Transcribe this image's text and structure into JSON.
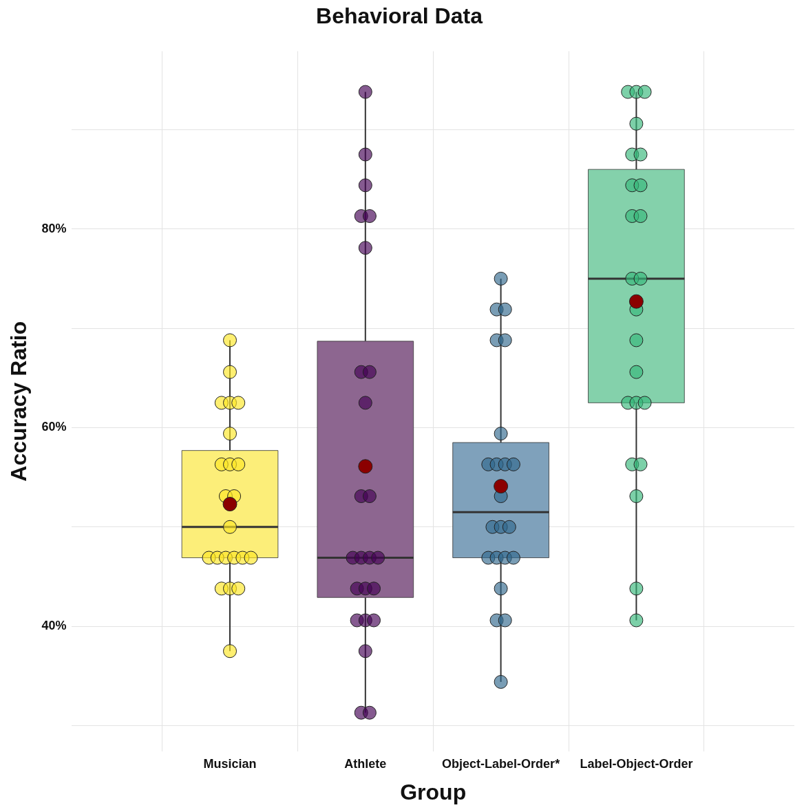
{
  "chart_data": {
    "type": "box",
    "title": "Behavioral Data",
    "xlabel": "Group",
    "ylabel": "Accuracy Ratio",
    "categories": [
      "Musician",
      "Athlete",
      "Object-Label-Order*",
      "Label-Object-Order"
    ],
    "colors": [
      "#fcee79",
      "#8d6690",
      "#7fa1bb",
      "#84d1ab"
    ],
    "boxes": [
      {
        "low": 37.5,
        "q1": 46.9,
        "median": 50,
        "q3": 57.7,
        "high": 68.8
      },
      {
        "low": 31.3,
        "q1": 42.9,
        "median": 46.9,
        "q3": 68.7,
        "high": 93.8
      },
      {
        "low": 34.4,
        "q1": 46.9,
        "median": 51.5,
        "q3": 58.5,
        "high": 75
      },
      {
        "low": 40.6,
        "q1": 62.5,
        "median": 75,
        "q3": 86,
        "high": 93.8
      }
    ],
    "series": [
      {
        "type": "scatter",
        "color": "#fde725",
        "x": [
          "Musician",
          "Musician",
          "Musician",
          "Musician",
          "Musician",
          "Musician",
          "Musician",
          "Musician",
          "Musician",
          "Musician",
          "Musician",
          "Musician",
          "Musician",
          "Musician",
          "Musician",
          "Musician",
          "Musician",
          "Musician",
          "Musician",
          "Musician",
          "Musician",
          "Musician"
        ],
        "values": [
          68.8,
          65.6,
          62.5,
          62.5,
          62.5,
          59.4,
          56.3,
          56.3,
          56.3,
          53.1,
          53.1,
          50,
          46.9,
          46.9,
          46.9,
          46.9,
          46.9,
          46.9,
          43.8,
          43.8,
          43.8,
          37.5
        ]
      },
      {
        "type": "scatter",
        "color": "#440154",
        "x": [
          "Athlete",
          "Athlete",
          "Athlete",
          "Athlete",
          "Athlete",
          "Athlete",
          "Athlete",
          "Athlete",
          "Athlete",
          "Athlete",
          "Athlete",
          "Athlete",
          "Athlete",
          "Athlete",
          "Athlete",
          "Athlete",
          "Athlete",
          "Athlete",
          "Athlete",
          "Athlete",
          "Athlete",
          "Athlete",
          "Athlete",
          "Athlete"
        ],
        "values": [
          93.8,
          87.5,
          84.4,
          81.3,
          81.3,
          78.1,
          65.6,
          65.6,
          62.5,
          53.1,
          53.1,
          46.9,
          46.9,
          46.9,
          46.9,
          43.8,
          43.8,
          43.8,
          40.6,
          40.6,
          40.6,
          37.5,
          31.3,
          31.3
        ]
      },
      {
        "type": "scatter",
        "color": "#31688e",
        "x": [
          "Object-Label-Order*",
          "Object-Label-Order*",
          "Object-Label-Order*",
          "Object-Label-Order*",
          "Object-Label-Order*",
          "Object-Label-Order*",
          "Object-Label-Order*",
          "Object-Label-Order*",
          "Object-Label-Order*",
          "Object-Label-Order*",
          "Object-Label-Order*",
          "Object-Label-Order*",
          "Object-Label-Order*",
          "Object-Label-Order*",
          "Object-Label-Order*",
          "Object-Label-Order*",
          "Object-Label-Order*",
          "Object-Label-Order*",
          "Object-Label-Order*",
          "Object-Label-Order*",
          "Object-Label-Order*",
          "Object-Label-Order*"
        ],
        "values": [
          75,
          71.9,
          71.9,
          68.8,
          68.8,
          59.4,
          56.3,
          56.3,
          56.3,
          56.3,
          53.1,
          50,
          50,
          50,
          46.9,
          46.9,
          46.9,
          46.9,
          43.8,
          40.6,
          40.6,
          34.4
        ]
      },
      {
        "type": "scatter",
        "color": "#35b779",
        "x": [
          "Label-Object-Order",
          "Label-Object-Order",
          "Label-Object-Order",
          "Label-Object-Order",
          "Label-Object-Order",
          "Label-Object-Order",
          "Label-Object-Order",
          "Label-Object-Order",
          "Label-Object-Order",
          "Label-Object-Order",
          "Label-Object-Order",
          "Label-Object-Order",
          "Label-Object-Order",
          "Label-Object-Order",
          "Label-Object-Order",
          "Label-Object-Order",
          "Label-Object-Order",
          "Label-Object-Order",
          "Label-Object-Order",
          "Label-Object-Order",
          "Label-Object-Order",
          "Label-Object-Order",
          "Label-Object-Order"
        ],
        "values": [
          93.8,
          93.8,
          93.8,
          90.6,
          87.5,
          87.5,
          84.4,
          84.4,
          81.3,
          81.3,
          75,
          75,
          71.9,
          68.8,
          65.6,
          62.5,
          62.5,
          62.5,
          56.3,
          56.3,
          53.1,
          43.8,
          40.6
        ]
      },
      {
        "type": "scatter",
        "color": "#8b0000",
        "x": [
          "Musician",
          "Athlete",
          "Object-Label-Order*",
          "Label-Object-Order"
        ],
        "values": [
          52.3,
          56.1,
          54.1,
          72.7
        ]
      }
    ],
    "ylim": [
      27.4,
      97.9
    ],
    "yticks": [
      {
        "value": 30,
        "label": null
      },
      {
        "value": 40,
        "label": "40%"
      },
      {
        "value": 50,
        "label": null
      },
      {
        "value": 60,
        "label": "60%"
      },
      {
        "value": 70,
        "label": null
      },
      {
        "value": 80,
        "label": "80%"
      },
      {
        "value": 90,
        "label": null
      }
    ],
    "grid": true,
    "legend": false,
    "marker": "circle"
  }
}
